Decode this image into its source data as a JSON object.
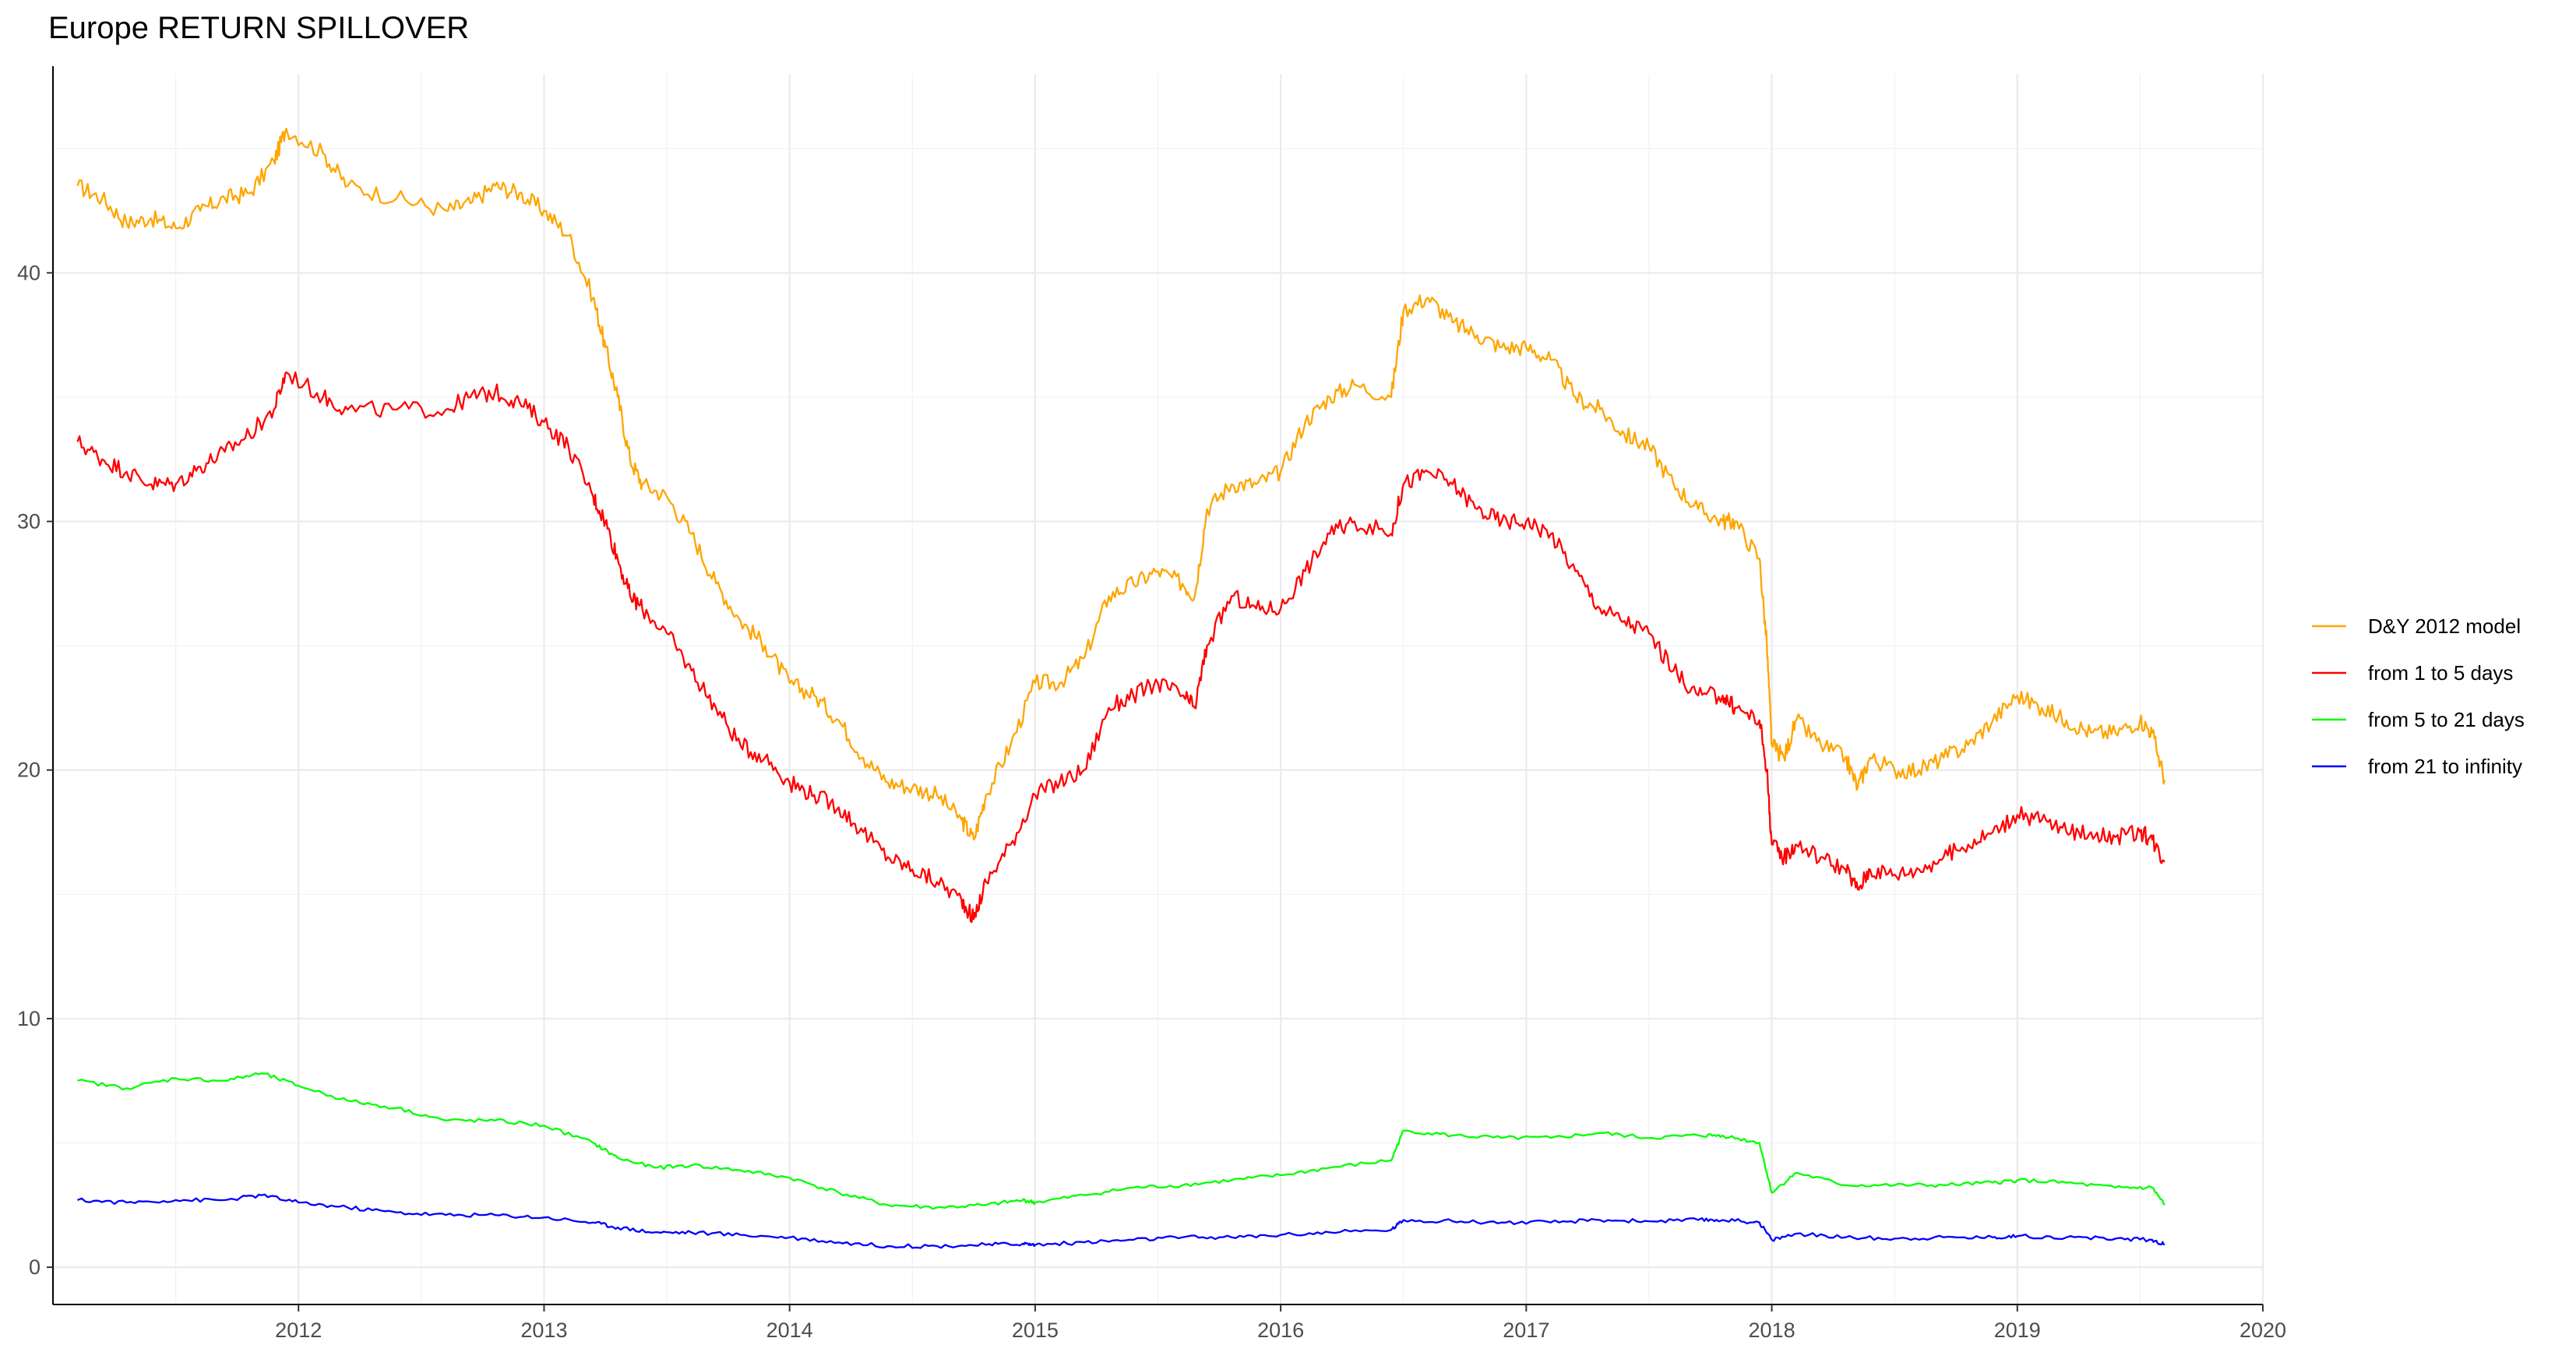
{
  "chart_data": {
    "type": "line",
    "title": "Europe RETURN SPILLOVER",
    "xlabel": "",
    "ylabel": "",
    "xlim": [
      2011.0,
      2020.0
    ],
    "ylim": [
      -1.5,
      48
    ],
    "x_ticks": [
      2012,
      2013,
      2014,
      2015,
      2016,
      2017,
      2018,
      2019,
      2020
    ],
    "x_tick_labels": [
      "2012",
      "2013",
      "2014",
      "2015",
      "2016",
      "2017",
      "2018",
      "2019",
      "2020"
    ],
    "y_ticks": [
      0,
      10,
      20,
      30,
      40
    ],
    "y_tick_labels": [
      "0",
      "10",
      "20",
      "30",
      "40"
    ],
    "grid": true,
    "legend_position": "right",
    "series": [
      {
        "name": "D&Y 2012 model",
        "color": "#FFA500",
        "x": [
          2011.1,
          2011.2,
          2011.3,
          2011.4,
          2011.5,
          2011.6,
          2011.7,
          2011.8,
          2011.9,
          2011.95,
          2012.1,
          2012.2,
          2012.4,
          2012.6,
          2012.7,
          2012.8,
          2012.9,
          2013.0,
          2013.1,
          2013.2,
          2013.25,
          2013.3,
          2013.35,
          2013.4,
          2013.5,
          2013.6,
          2013.7,
          2013.8,
          2013.9,
          2014.0,
          2014.1,
          2014.2,
          2014.3,
          2014.4,
          2014.5,
          2014.6,
          2014.7,
          2014.75,
          2014.8,
          2014.9,
          2015.0,
          2015.1,
          2015.2,
          2015.3,
          2015.4,
          2015.5,
          2015.6,
          2015.65,
          2015.7,
          2015.8,
          2015.9,
          2016.0,
          2016.1,
          2016.2,
          2016.3,
          2016.45,
          2016.5,
          2016.6,
          2016.7,
          2016.8,
          2016.9,
          2017.0,
          2017.1,
          2017.2,
          2017.3,
          2017.4,
          2017.5,
          2017.6,
          2017.7,
          2017.8,
          2017.85,
          2017.95,
          2017.98,
          2018.0,
          2018.05,
          2018.1,
          2018.2,
          2018.3,
          2018.35,
          2018.4,
          2018.5,
          2018.6,
          2018.7,
          2018.8,
          2018.9,
          2019.0,
          2019.1,
          2019.2,
          2019.3,
          2019.4,
          2019.5,
          2019.55,
          2019.6
        ],
        "y": [
          43.5,
          43.0,
          42.0,
          42.2,
          41.8,
          42.5,
          43.0,
          43.2,
          44.5,
          45.8,
          44.8,
          43.5,
          43.0,
          42.5,
          42.8,
          43.5,
          43.2,
          42.5,
          41.5,
          39.0,
          37.0,
          35.0,
          32.5,
          31.5,
          31.0,
          29.5,
          27.5,
          26.0,
          25.0,
          23.5,
          23.0,
          22.0,
          20.5,
          19.5,
          19.3,
          19.0,
          18.0,
          17.2,
          19.0,
          21.0,
          23.5,
          23.5,
          24.5,
          27.0,
          27.5,
          28.0,
          27.5,
          27.0,
          30.5,
          31.5,
          31.5,
          32.0,
          34.0,
          35.0,
          35.5,
          35.0,
          38.5,
          39.0,
          38.0,
          37.5,
          37.0,
          37.0,
          36.5,
          35.0,
          34.5,
          33.5,
          33.0,
          31.5,
          30.5,
          30.0,
          30.0,
          28.5,
          25.0,
          21.0,
          20.5,
          22.0,
          21.0,
          20.5,
          19.3,
          20.5,
          20.0,
          20.0,
          20.5,
          21.0,
          22.0,
          23.0,
          22.5,
          22.0,
          21.5,
          21.5,
          22.0,
          21.5,
          19.6
        ]
      },
      {
        "name": "from 1 to 5 days",
        "color": "#FF0000",
        "x": [
          2011.1,
          2011.2,
          2011.3,
          2011.4,
          2011.5,
          2011.6,
          2011.7,
          2011.8,
          2011.9,
          2011.95,
          2012.1,
          2012.2,
          2012.4,
          2012.6,
          2012.7,
          2012.8,
          2012.9,
          2013.0,
          2013.1,
          2013.2,
          2013.25,
          2013.3,
          2013.35,
          2013.4,
          2013.5,
          2013.6,
          2013.7,
          2013.8,
          2013.9,
          2014.0,
          2014.1,
          2014.2,
          2014.3,
          2014.4,
          2014.5,
          2014.6,
          2014.7,
          2014.75,
          2014.8,
          2014.9,
          2015.0,
          2015.1,
          2015.2,
          2015.3,
          2015.4,
          2015.5,
          2015.6,
          2015.65,
          2015.7,
          2015.8,
          2015.9,
          2016.0,
          2016.1,
          2016.2,
          2016.3,
          2016.45,
          2016.5,
          2016.6,
          2016.7,
          2016.8,
          2016.9,
          2017.0,
          2017.1,
          2017.2,
          2017.3,
          2017.4,
          2017.5,
          2017.6,
          2017.7,
          2017.8,
          2017.85,
          2017.95,
          2017.98,
          2018.0,
          2018.05,
          2018.1,
          2018.2,
          2018.3,
          2018.35,
          2018.4,
          2018.5,
          2018.6,
          2018.7,
          2018.8,
          2018.9,
          2019.0,
          2019.1,
          2019.2,
          2019.3,
          2019.4,
          2019.5,
          2019.55,
          2019.6
        ],
        "y": [
          33.2,
          32.5,
          32.0,
          31.5,
          31.5,
          32.2,
          32.8,
          33.5,
          34.5,
          36.0,
          35.0,
          34.5,
          34.5,
          34.5,
          35.0,
          35.2,
          34.8,
          34.0,
          33.0,
          31.0,
          30.0,
          28.5,
          27.0,
          26.5,
          25.5,
          24.0,
          22.5,
          21.0,
          20.5,
          19.5,
          19.0,
          18.5,
          17.5,
          16.5,
          16.0,
          15.5,
          14.8,
          14.0,
          15.5,
          17.0,
          19.0,
          19.5,
          20.0,
          22.5,
          23.0,
          23.5,
          23.0,
          22.5,
          25.0,
          27.0,
          26.5,
          26.5,
          28.0,
          29.5,
          30.0,
          29.5,
          31.5,
          32.0,
          31.5,
          30.5,
          30.0,
          30.0,
          29.5,
          28.0,
          26.5,
          26.0,
          25.5,
          24.0,
          23.0,
          23.0,
          22.5,
          22.0,
          20.0,
          17.0,
          16.5,
          17.0,
          16.5,
          16.0,
          15.2,
          16.0,
          15.8,
          16.0,
          16.5,
          17.0,
          17.5,
          18.2,
          18.0,
          17.5,
          17.5,
          17.3,
          17.5,
          17.2,
          16.3
        ]
      },
      {
        "name": "from 5 to 21 days",
        "color": "#00FF00",
        "x": [
          2011.1,
          2011.3,
          2011.5,
          2011.7,
          2011.85,
          2012.0,
          2012.2,
          2012.4,
          2012.6,
          2012.8,
          2013.0,
          2013.2,
          2013.3,
          2013.45,
          2013.6,
          2013.8,
          2014.0,
          2014.2,
          2014.4,
          2014.6,
          2014.8,
          2014.95,
          2015.0,
          2015.2,
          2015.4,
          2015.6,
          2015.8,
          2016.0,
          2016.2,
          2016.45,
          2016.5,
          2016.7,
          2016.9,
          2017.1,
          2017.3,
          2017.5,
          2017.7,
          2017.8,
          2017.95,
          2018.0,
          2018.1,
          2018.3,
          2018.5,
          2018.7,
          2018.9,
          2019.0,
          2019.2,
          2019.4,
          2019.55,
          2019.6
        ],
        "y": [
          7.5,
          7.2,
          7.6,
          7.5,
          7.8,
          7.3,
          6.7,
          6.4,
          5.9,
          5.9,
          5.7,
          5.0,
          4.4,
          4.0,
          4.1,
          3.9,
          3.6,
          3.0,
          2.5,
          2.4,
          2.5,
          2.7,
          2.6,
          2.9,
          3.2,
          3.3,
          3.5,
          3.7,
          4.0,
          4.3,
          5.5,
          5.3,
          5.2,
          5.2,
          5.4,
          5.2,
          5.3,
          5.3,
          5.0,
          3.0,
          3.8,
          3.3,
          3.3,
          3.3,
          3.4,
          3.5,
          3.4,
          3.2,
          3.2,
          2.5
        ]
      },
      {
        "name": "from 21 to infinity",
        "color": "#0000FF",
        "x": [
          2011.1,
          2011.3,
          2011.5,
          2011.7,
          2011.85,
          2012.0,
          2012.2,
          2012.4,
          2012.6,
          2012.8,
          2013.0,
          2013.2,
          2013.3,
          2013.45,
          2013.6,
          2013.8,
          2014.0,
          2014.2,
          2014.4,
          2014.6,
          2014.8,
          2014.95,
          2015.0,
          2015.2,
          2015.4,
          2015.6,
          2015.8,
          2016.0,
          2016.2,
          2016.45,
          2016.5,
          2016.7,
          2016.9,
          2017.1,
          2017.3,
          2017.5,
          2017.7,
          2017.8,
          2017.95,
          2018.0,
          2018.1,
          2018.3,
          2018.5,
          2018.7,
          2018.9,
          2019.0,
          2019.2,
          2019.4,
          2019.55,
          2019.6
        ],
        "y": [
          2.7,
          2.6,
          2.7,
          2.7,
          2.9,
          2.6,
          2.4,
          2.2,
          2.1,
          2.1,
          2.0,
          1.8,
          1.6,
          1.4,
          1.4,
          1.3,
          1.2,
          1.0,
          0.85,
          0.85,
          0.9,
          0.95,
          0.9,
          1.0,
          1.1,
          1.2,
          1.2,
          1.3,
          1.4,
          1.5,
          1.9,
          1.85,
          1.8,
          1.8,
          1.9,
          1.85,
          1.9,
          1.9,
          1.8,
          1.1,
          1.35,
          1.2,
          1.15,
          1.2,
          1.2,
          1.25,
          1.2,
          1.15,
          1.1,
          0.9
        ]
      }
    ]
  }
}
